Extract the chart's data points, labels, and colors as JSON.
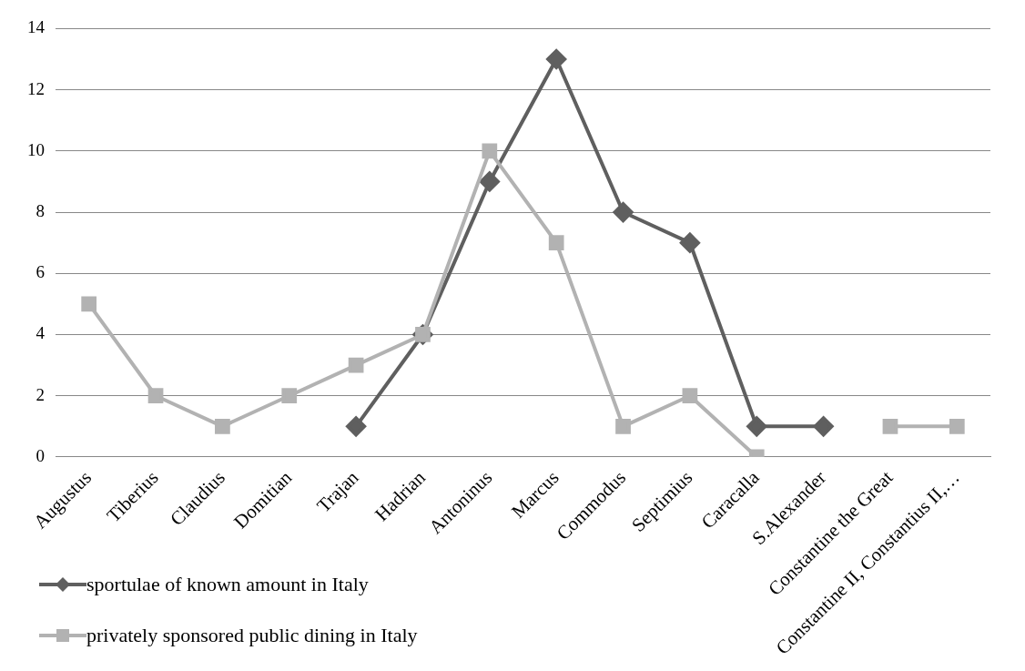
{
  "chart_data": {
    "type": "line",
    "categories": [
      "Augustus",
      "Tiberius",
      "Claudius",
      "Domitian",
      "Trajan",
      "Hadrian",
      "Antoninus",
      "Marcus",
      "Commodus",
      "Septimius",
      "Caracalla",
      "S.Alexander",
      "Constantine the Great",
      "Constantine II, Constantius II,…"
    ],
    "series": [
      {
        "name": "sportulae of known amount in Italy",
        "color": "#5f5f5f",
        "marker": "diamond",
        "values": [
          null,
          null,
          null,
          null,
          1,
          4,
          9,
          13,
          8,
          7,
          1,
          1,
          null,
          null
        ]
      },
      {
        "name": "privately sponsored public dining in Italy",
        "color": "#b2b2b2",
        "marker": "square",
        "values": [
          5,
          2,
          1,
          2,
          3,
          4,
          10,
          7,
          1,
          2,
          0,
          null,
          1,
          1
        ]
      }
    ],
    "ylim": [
      0,
      14
    ],
    "yticks": [
      0,
      2,
      4,
      6,
      8,
      10,
      12,
      14
    ],
    "grid": "y",
    "legend": "bottom left"
  }
}
